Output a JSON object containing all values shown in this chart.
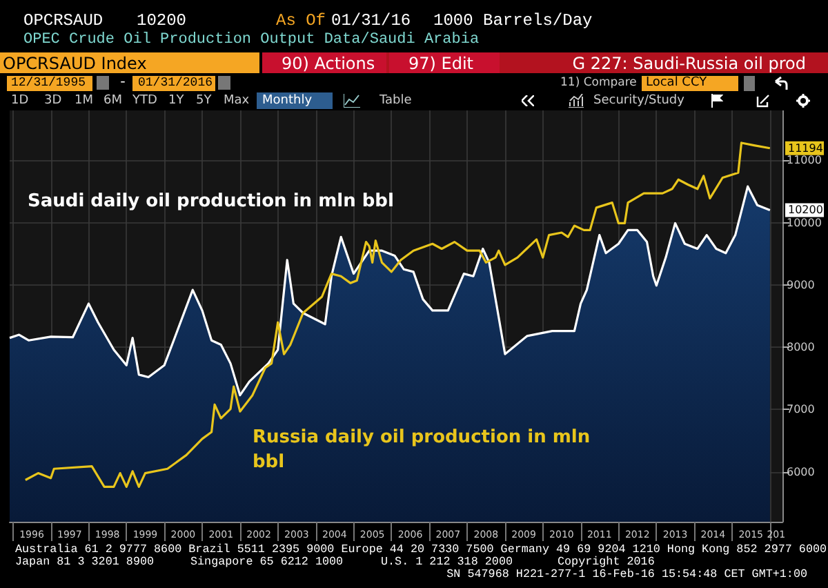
{
  "chart_data": {
    "type": "line",
    "title": "OPCRSAUD",
    "subtitle": "OPEC Crude Oil Production Output Data/Saudi Arabia",
    "series": [
      {
        "name": "Saudi daily oil production in mln bbl",
        "type": "area",
        "color": "#ffffff",
        "x": [
          "1995-12",
          "1996-03",
          "1996-06",
          "1997-01",
          "1997-08",
          "1998-01",
          "1998-04",
          "1998-09",
          "1999-01",
          "1999-03",
          "1999-05",
          "1999-08",
          "2000-01",
          "2000-04",
          "2000-10",
          "2001-01",
          "2001-04",
          "2001-07",
          "2001-10",
          "2002-01",
          "2002-04",
          "2002-10",
          "2003-01",
          "2003-04",
          "2003-06",
          "2003-09",
          "2004-04",
          "2004-06",
          "2004-09",
          "2005-01",
          "2005-06",
          "2005-10",
          "2006-02",
          "2006-05",
          "2006-08",
          "2006-11",
          "2007-02",
          "2007-07",
          "2007-12",
          "2008-03",
          "2008-06",
          "2008-08",
          "2008-11",
          "2009-01",
          "2009-08",
          "2010-04",
          "2010-11",
          "2011-01",
          "2011-03",
          "2011-07",
          "2011-09",
          "2012-01",
          "2012-04",
          "2012-07",
          "2012-10",
          "2012-12",
          "2013-01",
          "2013-04",
          "2013-07",
          "2013-10",
          "2014-02",
          "2014-05",
          "2014-08",
          "2014-11",
          "2015-02",
          "2015-06",
          "2015-09",
          "2016-01"
        ],
        "values": [
          8150,
          8200,
          8110,
          8170,
          8160,
          8700,
          8400,
          7960,
          7710,
          8150,
          7560,
          7520,
          7710,
          8110,
          8920,
          8590,
          8110,
          8040,
          7740,
          7230,
          7450,
          7740,
          7960,
          9400,
          8700,
          8550,
          8370,
          9140,
          9770,
          9180,
          9550,
          9550,
          9470,
          9250,
          9210,
          8770,
          8590,
          8590,
          9180,
          9140,
          9580,
          9360,
          8480,
          7890,
          8180,
          8260,
          8260,
          8700,
          8920,
          9800,
          9510,
          9660,
          9880,
          9880,
          9690,
          9140,
          8990,
          9440,
          9990,
          9660,
          9580,
          9800,
          9580,
          9510,
          9800,
          10580,
          10280,
          10200
        ]
      },
      {
        "name": "Russia daily oil production in mln bbl",
        "color": "#e8c51c",
        "x": [
          "1996-05",
          "1996-09",
          "1997-01",
          "1997-02",
          "1998-02",
          "1998-06",
          "1998-09",
          "1998-11",
          "1999-01",
          "1999-03",
          "1999-05",
          "1999-07",
          "2000-02",
          "2000-08",
          "2001-01",
          "2001-04",
          "2001-05",
          "2001-07",
          "2001-10",
          "2001-11",
          "2002-01",
          "2002-05",
          "2002-09",
          "2002-11",
          "2003-01",
          "2003-03",
          "2003-05",
          "2003-09",
          "2004-03",
          "2004-06",
          "2004-09",
          "2004-12",
          "2005-02",
          "2005-05",
          "2005-06",
          "2005-07",
          "2005-08",
          "2005-10",
          "2006-01",
          "2006-04",
          "2006-08",
          "2007-02",
          "2007-05",
          "2007-09",
          "2008-01",
          "2008-05",
          "2008-07",
          "2008-10",
          "2008-11",
          "2009-01",
          "2009-05",
          "2009-11",
          "2010-01",
          "2010-03",
          "2010-07",
          "2010-09",
          "2010-11",
          "2011-02",
          "2011-04",
          "2011-06",
          "2011-11",
          "2012-01",
          "2012-03",
          "2012-04",
          "2012-09",
          "2013-03",
          "2013-06",
          "2013-08",
          "2013-11",
          "2014-02",
          "2014-04",
          "2014-06",
          "2014-10",
          "2015-03",
          "2015-04",
          "2015-08",
          "2016-01"
        ],
        "values": [
          5870,
          5980,
          5900,
          6050,
          6090,
          5760,
          5760,
          5980,
          5760,
          6010,
          5760,
          5980,
          6050,
          6270,
          6530,
          6640,
          7080,
          6860,
          7010,
          7370,
          6970,
          7230,
          7670,
          7740,
          8400,
          7890,
          8040,
          8550,
          8810,
          9180,
          9140,
          9030,
          9070,
          9690,
          9620,
          9360,
          9710,
          9360,
          9210,
          9400,
          9550,
          9660,
          9580,
          9690,
          9550,
          9550,
          9360,
          9440,
          9550,
          9320,
          9440,
          9730,
          9440,
          9800,
          9840,
          9770,
          9950,
          9880,
          9880,
          10240,
          10320,
          9990,
          9990,
          10320,
          10470,
          10470,
          10540,
          10690,
          10610,
          10540,
          10750,
          10390,
          10720,
          10800,
          11280,
          11240,
          11194
        ]
      }
    ],
    "xlim": [
      "1995-12",
      "2016-05"
    ],
    "xticks": [
      {
        "value": "1996-01",
        "label": null
      },
      {
        "value": "1996-07",
        "label": "1996"
      },
      {
        "value": "1997-01",
        "label": null
      },
      {
        "value": "1997-07",
        "label": "1997"
      },
      {
        "value": "1998-01",
        "label": null
      },
      {
        "value": "1998-07",
        "label": "1998"
      },
      {
        "value": "1999-01",
        "label": null
      },
      {
        "value": "1999-07",
        "label": "1999"
      },
      {
        "value": "2000-01",
        "label": null
      },
      {
        "value": "2000-07",
        "label": "2000"
      },
      {
        "value": "2001-01",
        "label": null
      },
      {
        "value": "2001-07",
        "label": "2001"
      },
      {
        "value": "2002-01",
        "label": null
      },
      {
        "value": "2002-07",
        "label": "2002"
      },
      {
        "value": "2003-01",
        "label": null
      },
      {
        "value": "2003-07",
        "label": "2003"
      },
      {
        "value": "2004-01",
        "label": null
      },
      {
        "value": "2004-07",
        "label": "2004"
      },
      {
        "value": "2005-01",
        "label": null
      },
      {
        "value": "2005-07",
        "label": "2005"
      },
      {
        "value": "2006-01",
        "label": null
      },
      {
        "value": "2006-07",
        "label": "2006"
      },
      {
        "value": "2007-01",
        "label": null
      },
      {
        "value": "2007-07",
        "label": "2007"
      },
      {
        "value": "2008-01",
        "label": null
      },
      {
        "value": "2008-07",
        "label": "2008"
      },
      {
        "value": "2009-01",
        "label": null
      },
      {
        "value": "2009-07",
        "label": "2009"
      },
      {
        "value": "2010-01",
        "label": null
      },
      {
        "value": "2010-07",
        "label": "2010"
      },
      {
        "value": "2011-01",
        "label": null
      },
      {
        "value": "2011-07",
        "label": "2011"
      },
      {
        "value": "2012-01",
        "label": null
      },
      {
        "value": "2012-07",
        "label": "2012"
      },
      {
        "value": "2013-01",
        "label": null
      },
      {
        "value": "2013-07",
        "label": "2013"
      },
      {
        "value": "2014-01",
        "label": null
      },
      {
        "value": "2014-07",
        "label": "2014"
      },
      {
        "value": "2015-01",
        "label": null
      },
      {
        "value": "2015-07",
        "label": "2015"
      },
      {
        "value": "2016-01",
        "label": null
      },
      {
        "value": "2016-03",
        "label": "201"
      }
    ],
    "ylim": [
      5200,
      11800
    ],
    "yticks": [
      6000,
      7000,
      8000,
      9000,
      10000,
      11000
    ],
    "grid": true,
    "annotations": [
      "10200",
      "As Of",
      "01/31/16",
      "1000 Barrels/Day",
      "OPCRSAUD Index",
      "90) Actions",
      "97) Edit",
      "G 227: Saudi-Russia oil prod",
      "12/31/1995",
      "-",
      "01/31/2016",
      "11) Compare",
      "Local CCY",
      "1D",
      "3D",
      "1M",
      "6M",
      "YTD",
      "1Y",
      "5Y",
      "Max",
      "Monthly",
      "Table",
      "Security/Study",
      "Australia 61 2 9777 8600 Brazil 5511 2395 9000 Europe 44 20 7330 7500 Germany 49 69 9204 1210 Hong Kong 852 2977 6000",
      "Japan 81 3 3201 8900",
      "Singapore 65 6212 1000",
      "U.S. 1 212 318 2000",
      "Copyright 2016",
      "SN 547968 H221-277-1 16-Feb-16 15:54:48 CET GMT+1:00",
      {
        "text": "11194",
        "x": "2016-01",
        "y": 11194
      },
      {
        "text": "10200",
        "x": "2016-01",
        "y": 10200
      }
    ]
  }
}
